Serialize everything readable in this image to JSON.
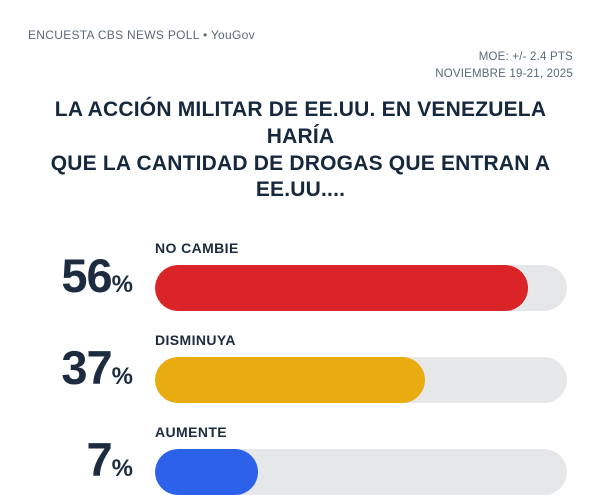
{
  "header": {
    "branding": "ENCUESTA CBS NEWS POLL • YouGov",
    "moe": "MOE: +/- 2.4 PTS",
    "date_range": "NOVIEMBRE 19-21, 2025"
  },
  "title": {
    "line1": "LA ACCIÓN MILITAR DE EE.UU. EN VENEZUELA HARÍA",
    "line2": "QUE LA CANTIDAD DE DROGAS QUE ENTRAN A EE.UU...."
  },
  "chart_data": {
    "type": "bar",
    "orientation": "horizontal",
    "title": "LA ACCIÓN MILITAR DE EE.UU. EN VENEZUELA HARÍA QUE LA CANTIDAD DE DROGAS QUE ENTRAN A EE.UU....",
    "categories": [
      "NO CAMBIE",
      "DISMINUYA",
      "AUMENTE"
    ],
    "values": [
      56,
      37,
      7
    ],
    "unit": "%",
    "bar_colors": [
      "#DB2428",
      "#E9AC10",
      "#2C62E9"
    ],
    "fill_css": [
      "90.5%",
      "65.5%",
      "25%"
    ],
    "colors": {
      "track": "#E6E7E9",
      "text_navy": "#1C2B3F",
      "meta_gray": "#5A6978"
    },
    "legend": "none",
    "axes": "none"
  }
}
